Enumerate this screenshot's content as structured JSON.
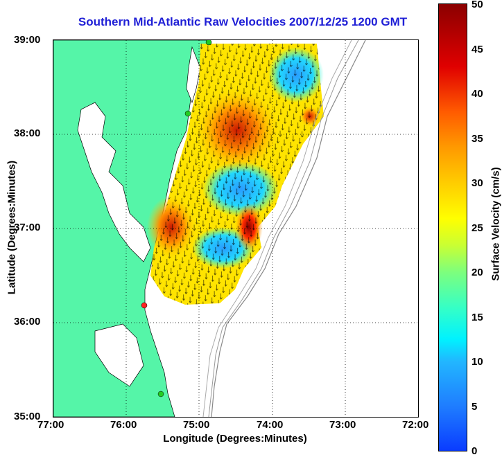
{
  "title": "Southern Mid-Atlantic Raw Velocities 2007/12/25 1200 GMT",
  "x_axis": {
    "label": "Longitude (Degrees:Minutes)",
    "ticks": [
      "77:00",
      "76:00",
      "75:00",
      "74:00",
      "73:00",
      "72:00"
    ]
  },
  "y_axis": {
    "label": "Latitude (Degrees:Minutes)",
    "ticks": [
      "39:00",
      "38:00",
      "37:00",
      "36:00",
      "35:00"
    ]
  },
  "colorbar": {
    "label": "Surface Velocity (cm/s)",
    "ticks": [
      "0",
      "5",
      "10",
      "15",
      "20",
      "25",
      "30",
      "35",
      "40",
      "45",
      "50"
    ],
    "range": [
      0,
      50
    ]
  },
  "chart_data": {
    "type": "heatmap",
    "x_range": [
      -77,
      -72
    ],
    "y_range": [
      35,
      39
    ],
    "grid": true,
    "units": "cm/s",
    "colormap": "jet",
    "stations": [
      {
        "lon": -74.9,
        "lat": 39.0,
        "color": "#22cc22"
      },
      {
        "lon": -75.15,
        "lat": 38.2,
        "color": "#22cc22"
      },
      {
        "lon": -75.7,
        "lat": 36.2,
        "color": "#ff2222"
      },
      {
        "lon": -75.5,
        "lat": 35.25,
        "color": "#22cc22"
      }
    ]
  }
}
